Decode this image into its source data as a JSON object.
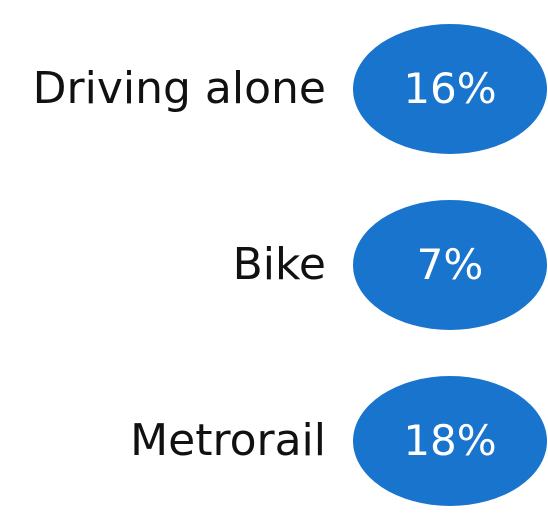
{
  "chart_data": {
    "type": "table",
    "categories": [
      "Driving alone",
      "Bike",
      "Metrorail"
    ],
    "values": [
      16,
      7,
      18
    ],
    "value_labels": [
      "16%",
      "7%",
      "18%"
    ],
    "unit": "%",
    "bubble_color": "#1874CD",
    "label_color": "#111111",
    "value_label_color": "#FFFFFF"
  }
}
